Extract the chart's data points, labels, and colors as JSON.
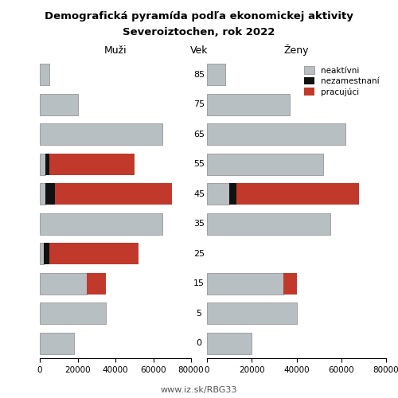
{
  "title_line1": "Demografická pyramída podľa ekonomickej aktivity",
  "title_line2": "Severoiztochen, rok 2022",
  "xlabel_left": "Muži",
  "xlabel_center": "Vek",
  "xlabel_right": "Ženy",
  "footer": "www.iz.sk/RBG33",
  "age_labels": [
    0,
    5,
    15,
    25,
    35,
    45,
    55,
    65,
    75,
    85
  ],
  "xlim": 80000,
  "color_neaktivni": "#b8bfc3",
  "color_nezamestnani": "#111111",
  "color_pracujuci": "#c0392b",
  "color_edge": "#888888",
  "males": {
    "neaktivni": [
      18000,
      35000,
      25000,
      2000,
      65000,
      3000,
      3000,
      65000,
      20000,
      5000
    ],
    "nezamestnani": [
      0,
      0,
      0,
      3000,
      0,
      5000,
      2000,
      0,
      0,
      0
    ],
    "pracujuci": [
      0,
      0,
      10000,
      47000,
      0,
      62000,
      45000,
      0,
      0,
      0
    ]
  },
  "females": {
    "neaktivni": [
      20000,
      40000,
      34000,
      0,
      55000,
      10000,
      52000,
      62000,
      37000,
      8000
    ],
    "nezamestnani": [
      0,
      0,
      0,
      0,
      0,
      3000,
      0,
      0,
      0,
      0
    ],
    "pracujuci": [
      0,
      0,
      6000,
      0,
      0,
      55000,
      0,
      0,
      0,
      0
    ]
  }
}
